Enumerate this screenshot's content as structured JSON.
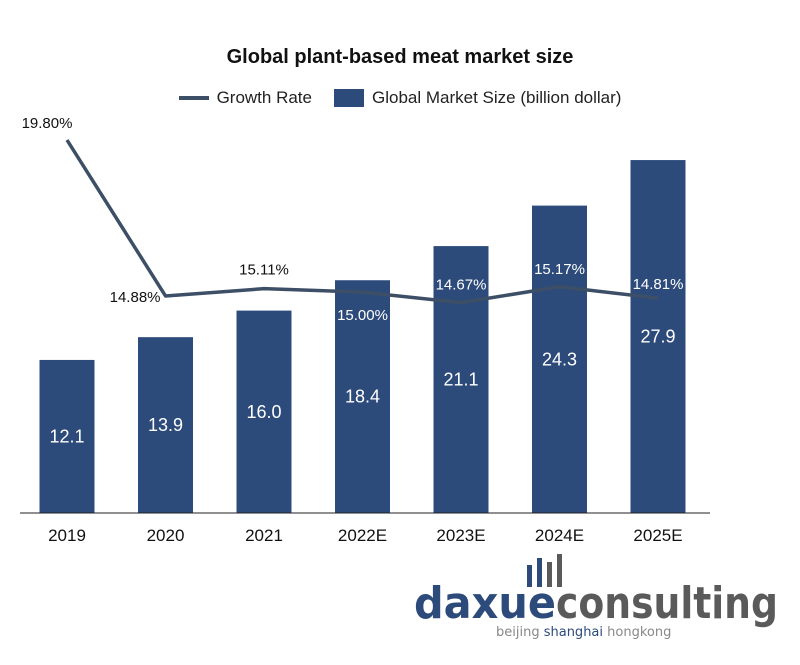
{
  "chart_data": {
    "type": "bar",
    "title": "Global plant-based meat market size",
    "categories": [
      "2019",
      "2020",
      "2021",
      "2022E",
      "2023E",
      "2024E",
      "2025E"
    ],
    "series": [
      {
        "name": "Global Market Size (billion dollar)",
        "type": "bar",
        "values": [
          12.1,
          13.9,
          16.0,
          18.4,
          21.1,
          24.3,
          27.9
        ],
        "labels": [
          "12.1",
          "13.9",
          "16.0",
          "18.4",
          "21.1",
          "24.3",
          "27.9"
        ],
        "color": "#2c4a7a"
      },
      {
        "name": "Growth Rate",
        "type": "line",
        "values": [
          19.8,
          14.88,
          15.11,
          15.0,
          14.67,
          15.17,
          14.81
        ],
        "labels": [
          "19.80%",
          "14.88%",
          "15.11%",
          "15.00%",
          "14.67%",
          "15.17%",
          "14.81%"
        ],
        "color": "#3d4f66"
      }
    ],
    "legend": "top",
    "grid": false
  },
  "logo": {
    "brand_a": "daxue",
    "brand_b": "consulting",
    "tagline_a": "beijing ",
    "tagline_b": "shanghai",
    "tagline_c": " hongkong"
  }
}
